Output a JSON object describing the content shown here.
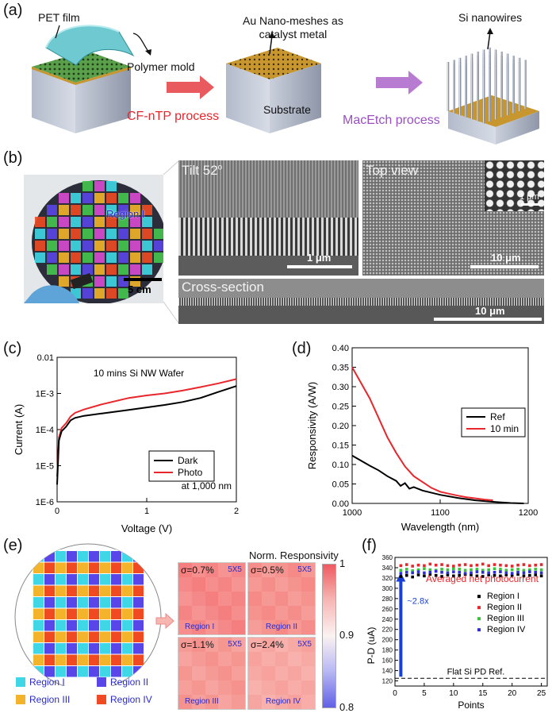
{
  "panel_labels": {
    "a": "(a)",
    "b": "(b)",
    "c": "(c)",
    "d": "(d)",
    "e": "(e)",
    "f": "(f)"
  },
  "panel_a": {
    "pet_film": "PET film",
    "polymer_mold": "Polymer mold",
    "cf_ntp": "CF-nTP process",
    "au_meshes": "Au Nano-meshes as\ncatalyst metal",
    "substrate": "Substrate",
    "macetch": "MacEtch process",
    "si_nanowires": "Si nanowires",
    "colors": {
      "red_arrow": "#e95a5f",
      "purple_arrow": "#b87bd2",
      "red_text": "#e8262b",
      "purple_text": "#9a4fc2",
      "gold": "#c8962e",
      "silver": "#a8b1c2"
    }
  },
  "panel_b": {
    "region_label": "Region I",
    "photo_scale": "5 cm",
    "tilt": "Tilt 52",
    "tilt_sup": "o",
    "tilt_scale": "1 μm",
    "top_view": "Top view",
    "top_scale": "10 μm",
    "inset_scale": "1 μm",
    "cross_section": "Cross-section",
    "cross_scale": "10 μm"
  },
  "panel_c": {
    "chart_data": {
      "type": "line",
      "title": "10 mins Si NW Wafer",
      "xlabel": "Voltage (V)",
      "ylabel": "Current (A)",
      "xlim": [
        0,
        2
      ],
      "ylim": [
        1e-06,
        0.01
      ],
      "yscale": "log",
      "xticks": [
        "0",
        "1",
        "2"
      ],
      "yticks": [
        "1E-6",
        "1E-5",
        "1E-4",
        "1E-3",
        "0.01"
      ],
      "annotation": "at 1,000 nm",
      "legend_position": "center-right",
      "series": [
        {
          "name": "Dark",
          "color": "#000000",
          "x": [
            0,
            0.02,
            0.05,
            0.1,
            0.15,
            0.2,
            0.3,
            0.5,
            0.8,
            1.0,
            1.2,
            1.4,
            1.6,
            1.8,
            2.0
          ],
          "values": [
            3e-06,
            5e-05,
            9e-05,
            0.00012,
            0.00018,
            0.00021,
            0.00024,
            0.00028,
            0.00035,
            0.00041,
            0.00048,
            0.00058,
            0.00075,
            0.0011,
            0.0016
          ]
        },
        {
          "name": "Photo",
          "color": "#e8262b",
          "x": [
            0,
            0.02,
            0.05,
            0.1,
            0.15,
            0.2,
            0.3,
            0.5,
            0.8,
            1.0,
            1.2,
            1.4,
            1.6,
            1.8,
            2.0
          ],
          "values": [
            5e-06,
            6e-05,
            0.00011,
            0.00015,
            0.00023,
            0.00029,
            0.00036,
            0.0005,
            0.00075,
            0.00088,
            0.001,
            0.0012,
            0.0015,
            0.0019,
            0.0025
          ]
        }
      ]
    }
  },
  "panel_d": {
    "chart_data": {
      "type": "line",
      "xlabel": "Wavelength (nm)",
      "ylabel": "Responsivity (A/W)",
      "xlim": [
        1000,
        1200
      ],
      "ylim": [
        0,
        0.4
      ],
      "xticks": [
        "1000",
        "1100",
        "1200"
      ],
      "yticks": [
        "0.00",
        "0.05",
        "0.10",
        "0.15",
        "0.20",
        "0.25",
        "0.30",
        "0.35",
        "0.40"
      ],
      "legend_position": "center-right",
      "series": [
        {
          "name": "Ref",
          "color": "#000000",
          "x": [
            1000,
            1010,
            1020,
            1030,
            1040,
            1050,
            1055,
            1060,
            1065,
            1070,
            1080,
            1100,
            1120,
            1140,
            1160,
            1180,
            1195
          ],
          "values": [
            0.123,
            0.11,
            0.097,
            0.085,
            0.07,
            0.058,
            0.045,
            0.052,
            0.038,
            0.042,
            0.033,
            0.022,
            0.014,
            0.008,
            0.004,
            0.001,
            0.0
          ]
        },
        {
          "name": "10 min",
          "color": "#e8262b",
          "x": [
            1000,
            1010,
            1020,
            1030,
            1040,
            1050,
            1060,
            1070,
            1080,
            1090,
            1100,
            1110,
            1120,
            1130,
            1140,
            1150,
            1160
          ],
          "values": [
            0.35,
            0.31,
            0.27,
            0.22,
            0.17,
            0.13,
            0.095,
            0.07,
            0.055,
            0.04,
            0.03,
            0.025,
            0.02,
            0.016,
            0.013,
            0.01,
            0.008
          ]
        }
      ]
    }
  },
  "panel_e": {
    "title": "Norm. Responsivity",
    "colorbar_ticks": [
      "1",
      "0.9",
      "0.8"
    ],
    "cells": [
      {
        "sigma": "σ=0.7%",
        "size": "5X5",
        "region": "Region I"
      },
      {
        "sigma": "σ=0.5%",
        "size": "5X5",
        "region": "Region II"
      },
      {
        "sigma": "σ=1.1%",
        "size": "5X5",
        "region": "Region III"
      },
      {
        "sigma": "σ=2.4%",
        "size": "5X5",
        "region": "Region IV"
      }
    ],
    "legend": [
      {
        "label": "Region I",
        "color": "#3fd7e6"
      },
      {
        "label": "Region II",
        "color": "#5946e8"
      },
      {
        "label": "Region III",
        "color": "#f3b42b"
      },
      {
        "label": "Region IV",
        "color": "#ef4a22"
      }
    ]
  },
  "panel_f": {
    "chart_data": {
      "type": "scatter",
      "xlabel": "Points",
      "ylabel": "P-D (uA)",
      "xlim": [
        0,
        26
      ],
      "ylim": [
        110,
        360
      ],
      "xticks": [
        "0",
        "5",
        "10",
        "15",
        "20",
        "25"
      ],
      "yticks": [
        "120",
        "140",
        "160",
        "180",
        "200",
        "220",
        "240",
        "260",
        "280",
        "300",
        "320",
        "340",
        "360"
      ],
      "annotation": "Averaged net photocurrent",
      "ratio": "~2.8x",
      "ref_label": "Flat Si PD Ref.",
      "ref_value": 125,
      "series": [
        {
          "name": "Region I",
          "color": "#000000",
          "values": [
            323,
            325,
            322,
            326,
            324,
            327,
            325,
            323,
            326,
            324,
            325,
            327,
            326,
            324,
            323,
            326,
            325,
            324,
            326,
            325,
            327,
            324,
            325,
            326,
            324
          ]
        },
        {
          "name": "Region II",
          "color": "#e8262b",
          "values": [
            344,
            346,
            343,
            345,
            344,
            347,
            345,
            346,
            344,
            343,
            345,
            346,
            344,
            345,
            347,
            344,
            346,
            345,
            344,
            343,
            345,
            346,
            344,
            345,
            346
          ]
        },
        {
          "name": "Region III",
          "color": "#36c23a",
          "values": [
            335,
            337,
            334,
            336,
            338,
            336,
            335,
            337,
            336,
            338,
            337,
            335,
            336,
            337,
            335,
            336,
            338,
            337,
            335,
            336,
            337,
            335,
            336,
            337,
            336
          ]
        },
        {
          "name": "Region IV",
          "color": "#2d2dd8",
          "values": [
            329,
            331,
            330,
            332,
            330,
            331,
            333,
            331,
            330,
            332,
            331,
            329,
            330,
            332,
            331,
            330,
            331,
            332,
            330,
            329,
            331,
            330,
            332,
            331,
            330
          ]
        }
      ]
    }
  }
}
